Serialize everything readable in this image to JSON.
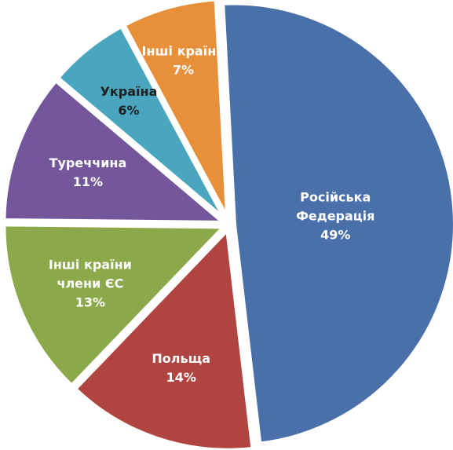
{
  "chart_data": {
    "type": "pie",
    "title": "",
    "slices": [
      {
        "label_lines": [
          "Російська",
          "Федерація"
        ],
        "value": 49,
        "value_label": "49%",
        "color": "#4a70aa",
        "text_color": "#ffffff"
      },
      {
        "label_lines": [
          "Польща"
        ],
        "value": 14,
        "value_label": "14%",
        "color": "#b04440",
        "text_color": "#ffffff"
      },
      {
        "label_lines": [
          "Інші країни",
          "члени ЄС"
        ],
        "value": 13,
        "value_label": "13%",
        "color": "#8ba84a",
        "text_color": "#ffffff"
      },
      {
        "label_lines": [
          "Туреччина"
        ],
        "value": 11,
        "value_label": "11%",
        "color": "#74569a",
        "text_color": "#ffffff"
      },
      {
        "label_lines": [
          "Україна"
        ],
        "value": 6,
        "value_label": "6%",
        "color": "#4aa5be",
        "text_color": "#1f1f1f"
      },
      {
        "label_lines": [
          "Інші країни"
        ],
        "value": 7,
        "value_label": "7%",
        "color": "#e88f3a",
        "text_color": "#ffffff"
      }
    ]
  }
}
